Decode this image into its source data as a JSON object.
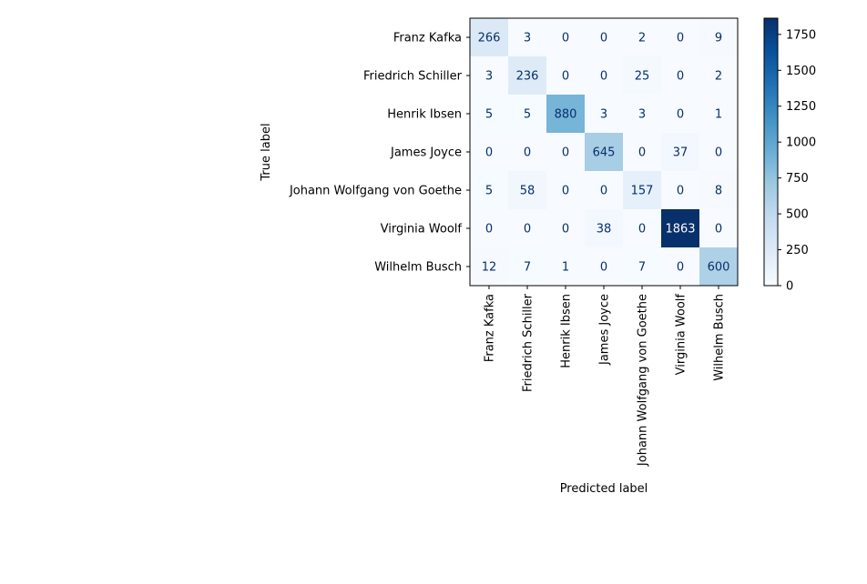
{
  "chart_data": {
    "type": "heatmap",
    "subtype": "confusion-matrix",
    "xlabel": "Predicted label",
    "ylabel": "True label",
    "classes": [
      "Franz Kafka",
      "Friedrich Schiller",
      "Henrik Ibsen",
      "James Joyce",
      "Johann Wolfgang von Goethe",
      "Virginia Woolf",
      "Wilhelm Busch"
    ],
    "matrix": [
      [
        266,
        3,
        0,
        0,
        2,
        0,
        9
      ],
      [
        3,
        236,
        0,
        0,
        25,
        0,
        2
      ],
      [
        5,
        5,
        880,
        3,
        3,
        0,
        1
      ],
      [
        0,
        0,
        0,
        645,
        0,
        37,
        0
      ],
      [
        5,
        58,
        0,
        0,
        157,
        0,
        8
      ],
      [
        0,
        0,
        0,
        38,
        0,
        1863,
        0
      ],
      [
        12,
        7,
        1,
        0,
        7,
        0,
        600
      ]
    ],
    "colormap": "Blues",
    "colorbar": {
      "range": [
        0,
        1863
      ],
      "ticks": [
        0,
        250,
        500,
        750,
        1000,
        1250,
        1500,
        1750
      ]
    },
    "grid": false
  }
}
